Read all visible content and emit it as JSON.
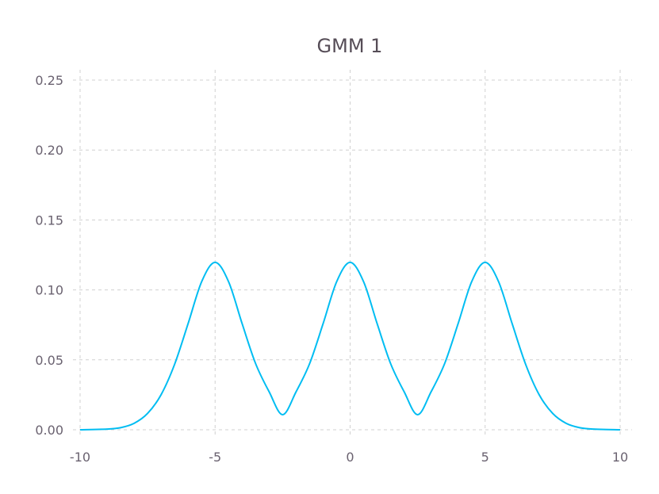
{
  "chart_data": {
    "type": "line",
    "title": "GMM 1",
    "xlabel": "",
    "ylabel": "",
    "xlim": [
      -10,
      10
    ],
    "ylim": [
      0,
      0.25
    ],
    "xticks": [
      -10,
      -5,
      0,
      5,
      10
    ],
    "xtick_labels": [
      "-10",
      "-5",
      "0",
      "5",
      "10"
    ],
    "yticks": [
      0,
      0.05,
      0.1,
      0.15,
      0.2,
      0.25
    ],
    "ytick_labels": [
      "0.00",
      "0.05",
      "0.10",
      "0.15",
      "0.20",
      "0.25"
    ],
    "grid": true,
    "legend": "none",
    "series": [
      {
        "color": "#00bdf2",
        "x": [
          -10,
          -9,
          -8.5,
          -8,
          -7.5,
          -7,
          -6.5,
          -6,
          -5.5,
          -5,
          -4.5,
          -4,
          -3.5,
          -3,
          -2.5,
          -2,
          -1.5,
          -1,
          -0.5,
          0,
          0.5,
          1,
          1.5,
          2,
          2.5,
          3,
          3.5,
          4,
          4.5,
          5,
          5.5,
          6,
          6.5,
          7,
          7.5,
          8,
          8.5,
          9,
          10
        ],
        "y": [
          0.0,
          0.0005,
          0.0015,
          0.0046,
          0.0117,
          0.0251,
          0.0468,
          0.0759,
          0.1058,
          0.1197,
          0.1058,
          0.0759,
          0.0473,
          0.0272,
          0.0108,
          0.0272,
          0.0473,
          0.0759,
          0.1058,
          0.1197,
          0.1058,
          0.0759,
          0.0473,
          0.0272,
          0.0108,
          0.0272,
          0.0473,
          0.0759,
          0.1058,
          0.1197,
          0.1058,
          0.0759,
          0.0468,
          0.0251,
          0.0117,
          0.0046,
          0.0015,
          0.0005,
          0.0
        ]
      }
    ]
  }
}
